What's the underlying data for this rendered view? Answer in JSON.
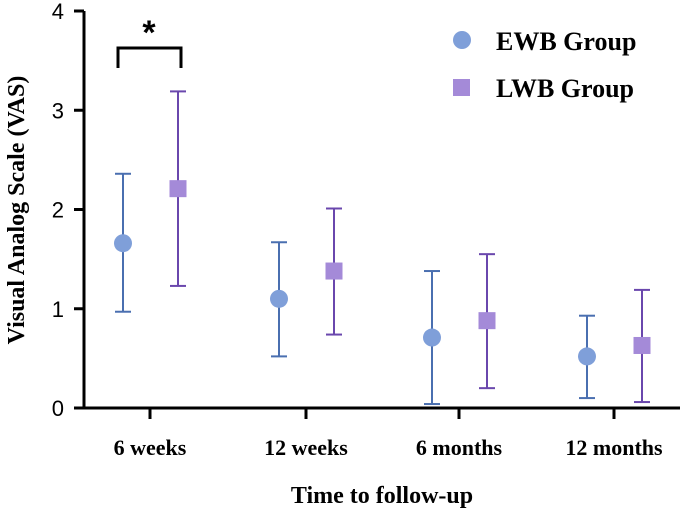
{
  "chart_data": {
    "type": "scatter",
    "title": "",
    "xlabel": "Time to follow-up",
    "ylabel": "Visual Analog Scale (VAS)",
    "categories": [
      "6 weeks",
      "12 weeks",
      "6 months",
      "12 months"
    ],
    "ylim": [
      0,
      4
    ],
    "yticks": [
      "0",
      "1",
      "2",
      "3",
      "4"
    ],
    "grid": false,
    "legend_position": "top-right",
    "series": [
      {
        "name": "EWB Group",
        "marker": "circle",
        "color": "#7f9fd9",
        "error_color": "#4a6fb0",
        "means": [
          1.66,
          1.1,
          0.71,
          0.52
        ],
        "lower": [
          0.97,
          0.52,
          0.04,
          0.1
        ],
        "upper": [
          2.36,
          1.67,
          1.38,
          0.93
        ]
      },
      {
        "name": "LWB Group",
        "marker": "square",
        "color": "#a48ad8",
        "error_color": "#6a47ad",
        "means": [
          2.21,
          1.38,
          0.88,
          0.63
        ],
        "lower": [
          1.23,
          0.74,
          0.2,
          0.06
        ],
        "upper": [
          3.19,
          2.01,
          1.55,
          1.19
        ]
      }
    ],
    "annotations": [
      {
        "text": "*",
        "type": "significance-bracket",
        "category": "6 weeks"
      }
    ]
  }
}
